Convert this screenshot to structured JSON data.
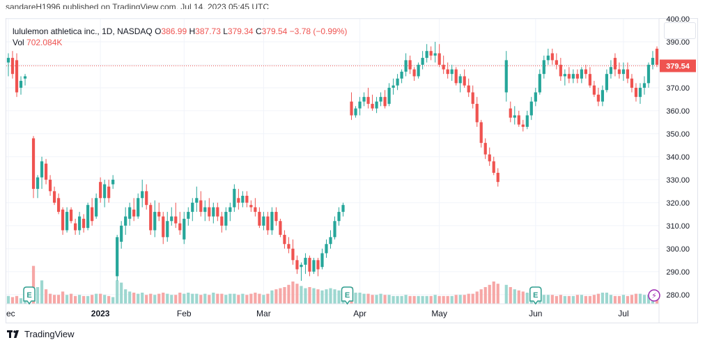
{
  "header_cut_text": "sandareH1996 published on TradingView.com, Jul 14, 2023 05:45 UTC",
  "legend": {
    "symbol": "lululemon athletica inc., 1D, NASDAQ",
    "o_label": "O",
    "o_value": "386.99",
    "h_label": "H",
    "h_value": "387.73",
    "l_label": "L",
    "l_value": "379.34",
    "c_label": "C",
    "c_value": "379.54",
    "change": "−3.78 (−0.99%)",
    "vol_label": "Vol",
    "vol_value": "702.084K"
  },
  "brand": {
    "name": "TradingView"
  },
  "colors": {
    "up": "#26a69a",
    "down": "#ef5350",
    "vol_up": "#9dd7d0",
    "vol_down": "#f6a7a6",
    "grid": "#f0f3fa",
    "axis_text": "#131722",
    "earnings": "#2f9e8f",
    "price_line": "#ef5350"
  },
  "chart_data": {
    "type": "candlestick",
    "title": "lululemon athletica inc., 1D, NASDAQ",
    "ylim": [
      276,
      400
    ],
    "y_ticks": [
      280,
      290,
      300,
      310,
      320,
      330,
      340,
      350,
      360,
      370,
      380,
      390,
      400
    ],
    "y_tick_labels": [
      "280.00",
      "290.00",
      "300.00",
      "310.00",
      "320.00",
      "330.00",
      "340.00",
      "350.00",
      "360.00",
      "370.00",
      "380.00",
      "390.00",
      "400.00"
    ],
    "x_tick_labels": [
      {
        "label": "ec",
        "index": 0
      },
      {
        "label": "2023",
        "index": 22
      },
      {
        "label": "Feb",
        "index": 42
      },
      {
        "label": "Mar",
        "index": 61
      },
      {
        "label": "Apr",
        "index": 84
      },
      {
        "label": "May",
        "index": 103
      },
      {
        "label": "Jun",
        "index": 126
      },
      {
        "label": "Jul",
        "index": 147
      }
    ],
    "num_slots": 156,
    "last_price": 379.54,
    "last_price_label": "379.54",
    "earnings_markers": [
      {
        "index": 5,
        "label": "E"
      },
      {
        "index": 81,
        "label": "E"
      },
      {
        "index": 126,
        "label": "E"
      }
    ],
    "dividend_marker": {
      "index": 155,
      "label": "⚡"
    },
    "candles": [
      [
        0,
        381,
        385,
        375,
        383,
        0.7
      ],
      [
        1,
        383,
        386,
        374,
        376,
        0.6
      ],
      [
        2,
        382,
        385,
        366,
        368,
        0.7
      ],
      [
        3,
        370,
        375,
        367,
        373,
        0.5
      ],
      [
        4,
        374,
        376,
        371,
        375,
        0.4
      ],
      [
        6,
        348,
        349,
        322,
        326,
        3.4
      ],
      [
        7,
        326,
        332,
        322,
        331,
        1.5
      ],
      [
        8,
        331,
        340,
        326,
        338,
        2.1
      ],
      [
        9,
        337,
        339,
        328,
        330,
        1.3
      ],
      [
        10,
        330,
        332,
        323,
        325,
        0.9
      ],
      [
        11,
        325,
        327,
        319,
        320,
        0.8
      ],
      [
        12,
        322,
        324,
        315,
        316,
        0.8
      ],
      [
        13,
        317,
        318,
        306,
        308,
        1.1
      ],
      [
        14,
        308,
        318,
        307,
        316,
        0.8
      ],
      [
        15,
        317,
        318,
        311,
        312,
        0.9
      ],
      [
        16,
        311,
        313,
        306,
        308,
        0.7
      ],
      [
        17,
        308,
        316,
        306,
        314,
        0.8
      ],
      [
        18,
        313,
        315,
        307,
        309,
        0.7
      ],
      [
        19,
        309,
        320,
        308,
        319,
        0.7
      ],
      [
        20,
        318,
        322,
        310,
        312,
        0.8
      ],
      [
        21,
        314,
        324,
        313,
        322,
        0.9
      ],
      [
        22,
        329,
        331,
        320,
        322,
        0.9
      ],
      [
        23,
        322,
        330,
        318,
        328,
        0.8
      ],
      [
        24,
        327,
        330,
        320,
        322,
        0.7
      ],
      [
        25,
        328,
        332,
        326,
        330,
        0.6
      ],
      [
        26,
        288,
        306,
        286,
        305,
        2.1
      ],
      [
        27,
        303,
        312,
        300,
        310,
        1.9
      ],
      [
        28,
        310,
        318,
        306,
        314,
        1.3
      ],
      [
        29,
        313,
        320,
        310,
        318,
        1.1
      ],
      [
        30,
        317,
        322,
        312,
        314,
        1.0
      ],
      [
        31,
        314,
        324,
        313,
        322,
        0.9
      ],
      [
        32,
        322,
        330,
        318,
        325,
        1.0
      ],
      [
        33,
        325,
        328,
        317,
        319,
        0.8
      ],
      [
        34,
        319,
        320,
        306,
        308,
        0.9
      ],
      [
        35,
        308,
        321,
        305,
        316,
        0.8
      ],
      [
        36,
        316,
        320,
        312,
        314,
        0.9
      ],
      [
        37,
        314,
        316,
        302,
        305,
        1.0
      ],
      [
        38,
        305,
        316,
        303,
        312,
        0.9
      ],
      [
        39,
        312,
        318,
        310,
        314,
        0.8
      ],
      [
        40,
        314,
        320,
        309,
        311,
        0.8
      ],
      [
        41,
        311,
        316,
        306,
        308,
        1.0
      ],
      [
        42,
        304,
        316,
        302,
        313,
        0.9
      ],
      [
        43,
        313,
        318,
        310,
        316,
        1.0
      ],
      [
        44,
        316,
        322,
        312,
        320,
        0.9
      ],
      [
        45,
        320,
        327,
        316,
        322,
        0.9
      ],
      [
        46,
        321,
        325,
        314,
        316,
        0.8
      ],
      [
        47,
        316,
        321,
        312,
        318,
        0.9
      ],
      [
        48,
        318,
        322,
        312,
        314,
        0.8
      ],
      [
        49,
        314,
        320,
        311,
        318,
        1.0
      ],
      [
        50,
        318,
        320,
        312,
        314,
        0.9
      ],
      [
        51,
        314,
        316,
        307,
        310,
        0.9
      ],
      [
        52,
        310,
        318,
        308,
        316,
        0.8
      ],
      [
        53,
        316,
        320,
        312,
        318,
        0.9
      ],
      [
        54,
        318,
        328,
        316,
        326,
        0.9
      ],
      [
        55,
        322,
        326,
        317,
        320,
        0.8
      ],
      [
        56,
        320,
        325,
        318,
        323,
        0.9
      ],
      [
        57,
        323,
        325,
        318,
        320,
        0.8
      ],
      [
        58,
        319,
        321,
        316,
        318,
        0.9
      ],
      [
        59,
        318,
        322,
        314,
        316,
        1.0
      ],
      [
        60,
        316,
        318,
        309,
        310,
        0.9
      ],
      [
        61,
        310,
        316,
        308,
        314,
        0.8
      ],
      [
        62,
        314,
        316,
        306,
        308,
        0.9
      ],
      [
        63,
        308,
        318,
        306,
        316,
        1.2
      ],
      [
        64,
        316,
        318,
        310,
        312,
        1.3
      ],
      [
        65,
        312,
        313,
        305,
        306,
        1.4
      ],
      [
        66,
        306,
        308,
        300,
        302,
        1.5
      ],
      [
        67,
        302,
        305,
        298,
        300,
        1.7
      ],
      [
        68,
        300,
        304,
        293,
        295,
        2.0
      ],
      [
        69,
        295,
        297,
        289,
        291,
        1.8
      ],
      [
        70,
        292,
        294,
        286,
        293,
        1.6
      ],
      [
        71,
        293,
        298,
        289,
        296,
        1.4
      ],
      [
        72,
        296,
        297,
        288,
        290,
        1.5
      ],
      [
        73,
        290,
        296,
        289,
        295,
        1.4
      ],
      [
        74,
        295,
        296,
        288,
        291,
        1.3
      ],
      [
        75,
        292,
        300,
        291,
        298,
        1.2
      ],
      [
        76,
        298,
        304,
        296,
        302,
        1.3
      ],
      [
        77,
        302,
        308,
        300,
        305,
        1.4
      ],
      [
        78,
        305,
        314,
        304,
        312,
        1.3
      ],
      [
        79,
        312,
        318,
        310,
        316,
        1.2
      ],
      [
        80,
        316,
        320,
        314,
        319,
        1.1
      ],
      [
        82,
        364,
        368,
        356,
        358,
        1.5
      ],
      [
        83,
        358,
        362,
        357,
        361,
        1.0
      ],
      [
        84,
        361,
        366,
        358,
        364,
        1.0
      ],
      [
        85,
        364,
        368,
        362,
        366,
        0.9
      ],
      [
        86,
        366,
        370,
        361,
        363,
        0.9
      ],
      [
        87,
        363,
        367,
        360,
        361,
        0.8
      ],
      [
        88,
        361,
        366,
        359,
        364,
        0.8
      ],
      [
        89,
        364,
        368,
        362,
        366,
        0.9
      ],
      [
        90,
        366,
        369,
        361,
        362,
        0.8
      ],
      [
        91,
        363,
        372,
        362,
        370,
        0.8
      ],
      [
        92,
        370,
        374,
        367,
        371,
        0.7
      ],
      [
        93,
        371,
        376,
        369,
        374,
        0.7
      ],
      [
        94,
        374,
        378,
        372,
        377,
        0.7
      ],
      [
        95,
        377,
        385,
        375,
        382,
        0.8
      ],
      [
        96,
        382,
        384,
        376,
        378,
        0.7
      ],
      [
        97,
        378,
        379,
        373,
        375,
        0.7
      ],
      [
        98,
        375,
        381,
        374,
        380,
        0.7
      ],
      [
        99,
        380,
        386,
        378,
        383,
        0.7
      ],
      [
        100,
        383,
        389,
        381,
        386,
        0.7
      ],
      [
        101,
        386,
        388,
        382,
        384,
        0.7
      ],
      [
        102,
        384,
        390,
        381,
        385,
        0.8
      ],
      [
        103,
        385,
        389,
        379,
        380,
        0.7
      ],
      [
        104,
        380,
        384,
        376,
        378,
        0.7
      ],
      [
        105,
        378,
        381,
        374,
        376,
        0.7
      ],
      [
        106,
        376,
        380,
        373,
        378,
        0.7
      ],
      [
        107,
        378,
        379,
        371,
        372,
        0.8
      ],
      [
        108,
        372,
        376,
        368,
        375,
        0.8
      ],
      [
        109,
        375,
        378,
        370,
        371,
        0.8
      ],
      [
        110,
        371,
        374,
        366,
        368,
        0.9
      ],
      [
        111,
        368,
        371,
        361,
        363,
        0.9
      ],
      [
        112,
        363,
        366,
        353,
        355,
        1.1
      ],
      [
        113,
        355,
        356,
        344,
        346,
        1.3
      ],
      [
        114,
        346,
        348,
        339,
        341,
        1.5
      ],
      [
        115,
        341,
        344,
        336,
        338,
        1.7
      ],
      [
        116,
        338,
        340,
        332,
        333,
        2.0
      ],
      [
        117,
        333,
        335,
        327,
        329,
        1.8
      ],
      [
        119,
        368,
        386,
        364,
        382,
        1.7
      ],
      [
        120,
        361,
        364,
        355,
        357,
        1.5
      ],
      [
        121,
        357,
        362,
        354,
        358,
        1.3
      ],
      [
        122,
        358,
        360,
        353,
        354,
        1.2
      ],
      [
        123,
        354,
        356,
        351,
        353,
        1.1
      ],
      [
        124,
        353,
        360,
        352,
        358,
        1.0
      ],
      [
        125,
        358,
        366,
        356,
        364,
        1.0
      ],
      [
        126,
        364,
        370,
        362,
        368,
        0.9
      ],
      [
        127,
        368,
        378,
        367,
        376,
        0.9
      ],
      [
        128,
        376,
        384,
        374,
        382,
        0.8
      ],
      [
        129,
        382,
        387,
        380,
        384,
        0.8
      ],
      [
        130,
        385,
        387,
        380,
        382,
        0.8
      ],
      [
        131,
        382,
        385,
        378,
        380,
        0.7
      ],
      [
        132,
        380,
        383,
        373,
        375,
        0.8
      ],
      [
        133,
        375,
        378,
        371,
        376,
        0.7
      ],
      [
        134,
        376,
        379,
        372,
        374,
        0.7
      ],
      [
        135,
        374,
        378,
        372,
        376,
        0.7
      ],
      [
        136,
        376,
        378,
        372,
        374,
        0.8
      ],
      [
        137,
        374,
        379,
        372,
        378,
        0.8
      ],
      [
        138,
        378,
        380,
        374,
        376,
        0.7
      ],
      [
        139,
        376,
        379,
        370,
        371,
        0.7
      ],
      [
        140,
        371,
        373,
        366,
        367,
        0.8
      ],
      [
        141,
        367,
        370,
        362,
        364,
        0.9
      ],
      [
        142,
        364,
        371,
        362,
        369,
        1.0
      ],
      [
        143,
        369,
        378,
        368,
        376,
        1.0
      ],
      [
        144,
        376,
        382,
        374,
        379,
        0.8
      ],
      [
        145,
        383,
        385,
        375,
        378,
        0.7
      ],
      [
        146,
        378,
        381,
        374,
        376,
        0.7
      ],
      [
        147,
        376,
        381,
        373,
        378,
        0.8
      ],
      [
        148,
        378,
        381,
        372,
        374,
        0.7
      ],
      [
        149,
        374,
        376,
        368,
        370,
        0.8
      ],
      [
        150,
        370,
        372,
        364,
        366,
        0.9
      ],
      [
        151,
        366,
        372,
        363,
        370,
        0.9
      ],
      [
        152,
        370,
        375,
        367,
        372,
        0.8
      ],
      [
        153,
        372,
        381,
        370,
        380,
        0.8
      ],
      [
        154,
        380,
        386,
        378,
        383,
        0.8
      ],
      [
        155,
        387,
        388,
        379,
        380,
        0.7
      ]
    ]
  }
}
